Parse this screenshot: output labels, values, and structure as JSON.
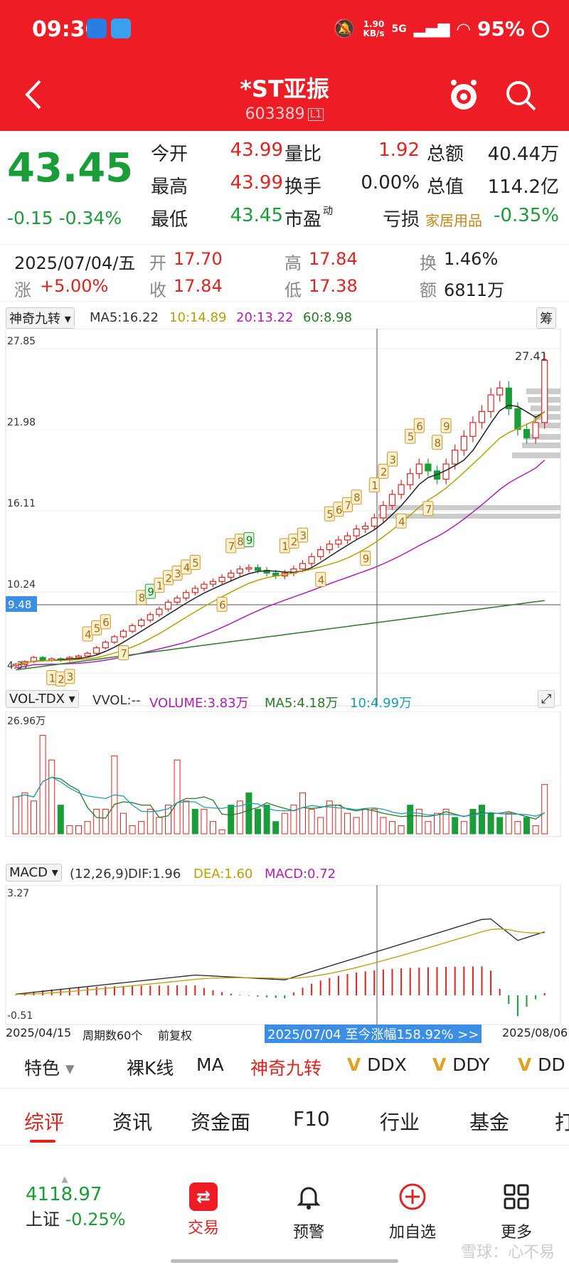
{
  "status_bar": {
    "time": "09:30",
    "net_speed": "1.90",
    "net_unit": "KB/s",
    "signal": "5G",
    "battery": "95%"
  },
  "header": {
    "title": "*ST亚振",
    "code": "603389",
    "level": "L1"
  },
  "quote": {
    "price": "43.45",
    "change": "-0.15",
    "change_pct": "-0.34%",
    "fields": [
      {
        "label": "今开",
        "value": "43.99",
        "color": "red"
      },
      {
        "label": "量比",
        "value": "1.92",
        "color": "red"
      },
      {
        "label": "总额",
        "value": "40.44万",
        "color": "black"
      },
      {
        "label": "最高",
        "value": "43.99",
        "color": "red"
      },
      {
        "label": "换手",
        "value": "0.00%",
        "color": "black"
      },
      {
        "label": "总值",
        "value": "114.2亿",
        "color": "black"
      },
      {
        "label": "最低",
        "value": "43.45",
        "color": "green"
      },
      {
        "label": "市盈",
        "value": "亏损",
        "color": "black",
        "sup": "动"
      },
      {
        "label": "家居用品",
        "value": "-0.35%",
        "color": "green"
      }
    ]
  },
  "day_info": {
    "date": "2025/07/04/五",
    "open_label": "开",
    "open": "17.70",
    "high_label": "高",
    "high": "17.84",
    "turnover_label": "换",
    "turnover": "1.46%",
    "change_label": "涨",
    "change": "+5.00%",
    "close_label": "收",
    "close": "17.84",
    "low_label": "低",
    "low": "17.38",
    "amount_label": "额",
    "amount": "6811万"
  },
  "main_chart": {
    "indicator": "神奇九转",
    "ma5": "MA5:16.22",
    "ma10": "10:14.89",
    "ma20": "20:13.22",
    "ma60": "60:8.98",
    "chip_btn": "筹",
    "y_labels": [
      "27.85",
      "21.98",
      "16.11",
      "10.24",
      "4.37"
    ],
    "crosshair_price": "9.48",
    "high_mark": "27.41",
    "colors": {
      "up": "#e0231f",
      "down": "#1a9c38",
      "ma5": "#222222",
      "ma10": "#b8a000",
      "ma20": "#b020b0",
      "ma60": "#2a7a2a"
    }
  },
  "vol_chart": {
    "indicator": "VOL-TDX",
    "vvol": "VVOL:--",
    "volume": "VOLUME:3.83万",
    "ma5": "MA5:4.18万",
    "ma10": "10:4.99万",
    "max_label": "26.96万"
  },
  "macd_chart": {
    "indicator": "MACD",
    "params": "(12,26,9)",
    "dif": "DIF:1.96",
    "dea": "DEA:1.60",
    "macd": "MACD:0.72",
    "y_top": "3.27",
    "y_bottom": "-0.51"
  },
  "chart_footer": {
    "start": "2025/04/15",
    "period": "周期数60个",
    "adj": "前复权",
    "range": "2025/07/04 至今涨幅158.92% >>",
    "end": "2025/08/06"
  },
  "features": [
    "特色",
    "裸K线",
    "MA",
    "神奇九转",
    "DDX",
    "DDY",
    "DD"
  ],
  "tabs": [
    "综评",
    "资讯",
    "资金面",
    "F10",
    "行业",
    "基金",
    "打"
  ],
  "bottom_nav": {
    "index_value": "4118.97",
    "index_name": "上证",
    "index_change": "-0.25%",
    "items": [
      "交易",
      "预警",
      "加自选",
      "更多"
    ]
  },
  "watermark": "雪球：心不易"
}
